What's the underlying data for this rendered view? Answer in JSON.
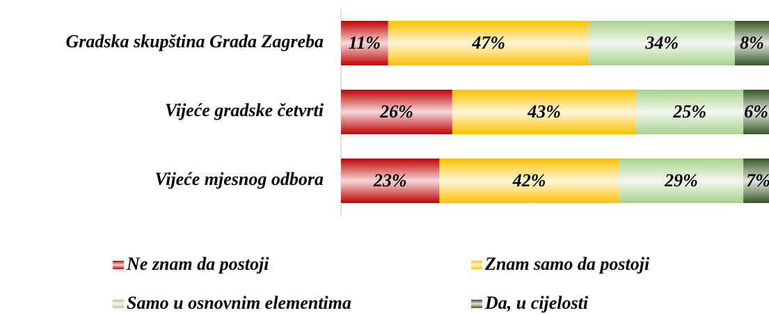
{
  "chart_data": {
    "type": "stacked-bar-horizontal",
    "categories": [
      "Gradska skupština Grada Zagreba",
      "Vijeće gradske četvrti",
      "Vijeće mjesnog odbora"
    ],
    "xlim": [
      0,
      100
    ],
    "series": [
      {
        "name": "Ne znam da postoji",
        "color": "#c00000",
        "values": [
          11,
          26,
          23
        ],
        "value_labels": [
          "11%",
          "26%",
          "23%"
        ]
      },
      {
        "name": "Znam samo da postoji",
        "color": "#ffc000",
        "values": [
          47,
          43,
          42
        ],
        "value_labels": [
          "47%",
          "43%",
          "42%"
        ]
      },
      {
        "name": "Samo u osnovnim elementima",
        "color": "#a9d18e",
        "values": [
          34,
          25,
          29
        ],
        "value_labels": [
          "34%",
          "25%",
          "29%"
        ]
      },
      {
        "name": "Da, u cijelosti",
        "color": "#375623",
        "values": [
          8,
          6,
          7
        ],
        "value_labels": [
          "8%",
          "6%",
          "7%"
        ]
      }
    ],
    "legend": "bottom"
  }
}
